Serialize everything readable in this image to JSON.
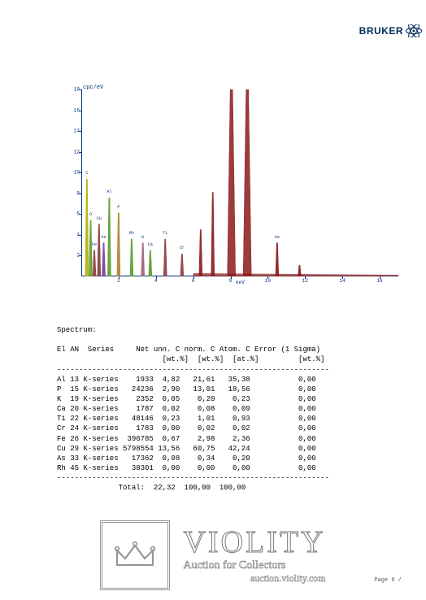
{
  "logo": {
    "text": "BRUKER"
  },
  "chart": {
    "title_suffix": "cpc/eV",
    "xlabel": "keV",
    "ymax": 18,
    "ytick_step": 2,
    "xmax": 17,
    "xtick_step": 2,
    "background_color": "#ffffff",
    "axis_color": "#003080",
    "peaks": [
      {
        "x_kev": 0.3,
        "height": 0.52,
        "color": "#b0b000",
        "label": "C"
      },
      {
        "x_kev": 0.5,
        "height": 0.3,
        "color": "#5a9a2a",
        "label": "O"
      },
      {
        "x_kev": 0.7,
        "height": 0.14,
        "color": "#8b3a3a",
        "label": "Fe"
      },
      {
        "x_kev": 0.95,
        "height": 0.28,
        "color": "#8b3a3a",
        "label": "Cu"
      },
      {
        "x_kev": 1.2,
        "height": 0.18,
        "color": "#7a3aa0",
        "label": "As"
      },
      {
        "x_kev": 1.5,
        "height": 0.42,
        "color": "#5a9a2a",
        "label": "Al"
      },
      {
        "x_kev": 2.0,
        "height": 0.34,
        "color": "#b08030",
        "label": "P"
      },
      {
        "x_kev": 2.7,
        "height": 0.2,
        "color": "#5a9a2a",
        "label": "Rh"
      },
      {
        "x_kev": 3.3,
        "height": 0.18,
        "color": "#a05a7a",
        "label": "K"
      },
      {
        "x_kev": 3.7,
        "height": 0.14,
        "color": "#5a9a2a",
        "label": "Ca"
      },
      {
        "x_kev": 4.5,
        "height": 0.2,
        "color": "#8b3a3a",
        "label": "Ti"
      },
      {
        "x_kev": 5.4,
        "height": 0.12,
        "color": "#8b3a3a",
        "label": "Cr"
      },
      {
        "x_kev": 6.4,
        "height": 0.25,
        "color": "#8b1a1a",
        "label": ""
      },
      {
        "x_kev": 7.05,
        "height": 0.45,
        "color": "#8b1a1a",
        "label": ""
      },
      {
        "x_kev": 8.05,
        "height": 1.35,
        "color": "#8b1a1a",
        "label": "",
        "wide": true
      },
      {
        "x_kev": 8.9,
        "height": 1.35,
        "color": "#8b1a1a",
        "label": "",
        "wide": true
      },
      {
        "x_kev": 10.5,
        "height": 0.18,
        "color": "#8b1a1a",
        "label": "As"
      },
      {
        "x_kev": 11.7,
        "height": 0.06,
        "color": "#8b1a1a",
        "label": ""
      }
    ],
    "baseline_color": "#8b1a1a"
  },
  "table": {
    "spectrum_label": "Spectrum:",
    "header_line1": "El AN  Series     Net unn. C norm. C Atom. C Error (1 Sigma)",
    "header_line2": "                        [wt.%]  [wt.%]  [at.%]         [wt.%]",
    "divider": "--------------------------------------------------------------",
    "rows": [
      "Al 13 K-series    1933  4,82   21,61   35,38           0,00",
      "P  15 K-series   24236  2,90   13,01   18,56           0,00",
      "K  19 K-series    2352  0,05    0,20    0,23           0,00",
      "Ca 20 K-series    1787  0,02    0,08    0,09           0,00",
      "Ti 22 K-series   48146  0,23    1,01    0,93           0,00",
      "Cr 24 K-series    1783  0,00    0,02    0,02           0,00",
      "Fe 26 K-series  396785  0,67    2,98    2,36           0,00",
      "Cu 29 K-series 5798554 13,56   60,75   42,24           0,00",
      "As 33 K-series   17362  0,08    0,34    0,20           0,00",
      "Rh 45 K-series   38301  0,00    0,00    0,00           0,00"
    ],
    "total_line": "              Total:  22,32  100,00  100,00"
  },
  "watermark": {
    "title": "VIOLITY",
    "subtitle": "Auction for Collectors",
    "url": "auction.violity.com"
  },
  "page_number": "Page 6 /"
}
